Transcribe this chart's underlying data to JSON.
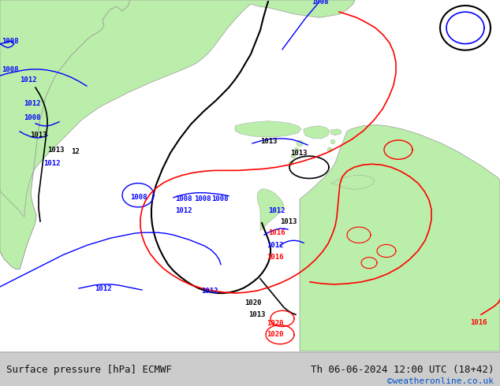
{
  "title_left": "Surface pressure [hPa] ECMWF",
  "title_right": "Th 06-06-2024 12:00 UTC (18+42)",
  "credit": "©weatheronline.co.uk",
  "credit_color": "#0055cc",
  "background_map": "#d8d8d8",
  "land_color": "#bbeeaa",
  "border_color": "#999999",
  "fig_width": 6.34,
  "fig_height": 4.9,
  "dpi": 100,
  "bottom_bar_color": "#cccccc",
  "text_color": "#111111",
  "title_fontsize": 9,
  "credit_fontsize": 8
}
